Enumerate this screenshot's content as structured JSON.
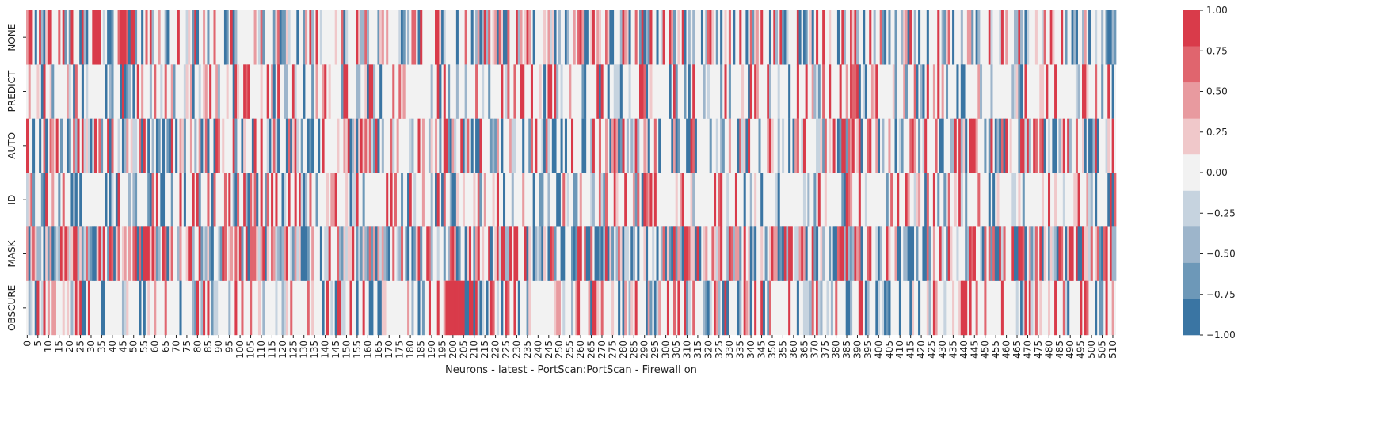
{
  "chart_data": {
    "type": "heatmap",
    "title": "",
    "xlabel": "Neurons - latest - PortScan:PortScan - Firewall on",
    "ylabel": "",
    "rows": [
      "NONE",
      "PREDICT",
      "AUTO",
      "ID",
      "MASK",
      "OBSCURE"
    ],
    "n_columns": 512,
    "x_tick_labels": [
      "0",
      "5",
      "10",
      "15",
      "20",
      "25",
      "30",
      "35",
      "40",
      "45",
      "50",
      "55",
      "60",
      "65",
      "70",
      "75",
      "80",
      "85",
      "90",
      "95",
      "100",
      "105",
      "110",
      "115",
      "120",
      "125",
      "130",
      "135",
      "140",
      "145",
      "150",
      "155",
      "160",
      "165",
      "170",
      "175",
      "180",
      "185",
      "190",
      "195",
      "200",
      "205",
      "210",
      "215",
      "220",
      "225",
      "230",
      "235",
      "240",
      "245",
      "250",
      "255",
      "260",
      "265",
      "270",
      "275",
      "280",
      "285",
      "290",
      "295",
      "300",
      "305",
      "310",
      "315",
      "320",
      "325",
      "330",
      "335",
      "340",
      "345",
      "350",
      "355",
      "360",
      "365",
      "370",
      "375",
      "380",
      "385",
      "390",
      "395",
      "400",
      "405",
      "410",
      "415",
      "420",
      "425",
      "430",
      "435",
      "440",
      "445",
      "450",
      "455",
      "460",
      "465",
      "470",
      "475",
      "480",
      "485",
      "490",
      "495",
      "500",
      "505",
      "510"
    ],
    "x_tick_step": 5,
    "value_range": [
      -1.0,
      1.0
    ],
    "colorbar": {
      "ticks": [
        "1.00",
        "0.75",
        "0.50",
        "0.25",
        "0.00",
        "−0.25",
        "−0.50",
        "−0.75",
        "−1.00"
      ],
      "levels": [
        "#d93b4a",
        "#e0656e",
        "#e89a9f",
        "#f0c8ca",
        "#f2f2f2",
        "#c6d3df",
        "#9db5cb",
        "#6d98b8",
        "#3a75a3"
      ]
    },
    "colormap": "diverging blue-grey-red, 9 discrete levels",
    "level_values": [
      1.0,
      0.75,
      0.5,
      0.25,
      0.0,
      -0.25,
      -0.5,
      -0.75,
      -1.0
    ],
    "row_densities": {
      "NONE": 0.52,
      "PREDICT": 0.38,
      "AUTO": 0.55,
      "ID": 0.42,
      "MASK": 0.78,
      "OBSCURE": 0.4
    }
  }
}
